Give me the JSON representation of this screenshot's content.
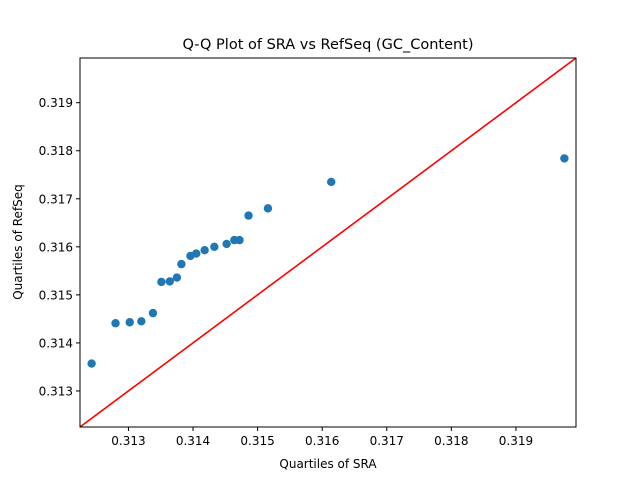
{
  "chart_data": {
    "type": "scatter",
    "title": "Q-Q Plot of SRA vs RefSeq (GC_Content)",
    "xlabel": "Quartiles of SRA",
    "ylabel": "Quartiles of RefSeq",
    "xlim": [
      0.31225,
      0.31993
    ],
    "ylim": [
      0.31225,
      0.31993
    ],
    "xticks": [
      0.313,
      0.314,
      0.315,
      0.316,
      0.317,
      0.318,
      0.319
    ],
    "yticks": [
      0.313,
      0.314,
      0.315,
      0.316,
      0.317,
      0.318,
      0.319
    ],
    "xtick_labels": [
      "0.313",
      "0.314",
      "0.315",
      "0.316",
      "0.317",
      "0.318",
      "0.319"
    ],
    "ytick_labels": [
      "0.313",
      "0.314",
      "0.315",
      "0.316",
      "0.317",
      "0.318",
      "0.319"
    ],
    "grid": false,
    "points": [
      {
        "x": 0.31243,
        "y": 0.31357
      },
      {
        "x": 0.3128,
        "y": 0.31441
      },
      {
        "x": 0.31302,
        "y": 0.31443
      },
      {
        "x": 0.3132,
        "y": 0.31445
      },
      {
        "x": 0.31338,
        "y": 0.31462
      },
      {
        "x": 0.31351,
        "y": 0.31527
      },
      {
        "x": 0.31364,
        "y": 0.31528
      },
      {
        "x": 0.31375,
        "y": 0.31536
      },
      {
        "x": 0.31382,
        "y": 0.31564
      },
      {
        "x": 0.31396,
        "y": 0.31581
      },
      {
        "x": 0.31405,
        "y": 0.31586
      },
      {
        "x": 0.31418,
        "y": 0.31593
      },
      {
        "x": 0.31433,
        "y": 0.316
      },
      {
        "x": 0.31452,
        "y": 0.31606
      },
      {
        "x": 0.31464,
        "y": 0.31614
      },
      {
        "x": 0.31472,
        "y": 0.31614
      },
      {
        "x": 0.31486,
        "y": 0.31665
      },
      {
        "x": 0.31516,
        "y": 0.3168
      },
      {
        "x": 0.31614,
        "y": 0.31735
      },
      {
        "x": 0.31975,
        "y": 0.31784
      }
    ],
    "reference_line": {
      "type": "identity",
      "color": "#ff0000"
    },
    "marker_color": "#1f77b4"
  }
}
